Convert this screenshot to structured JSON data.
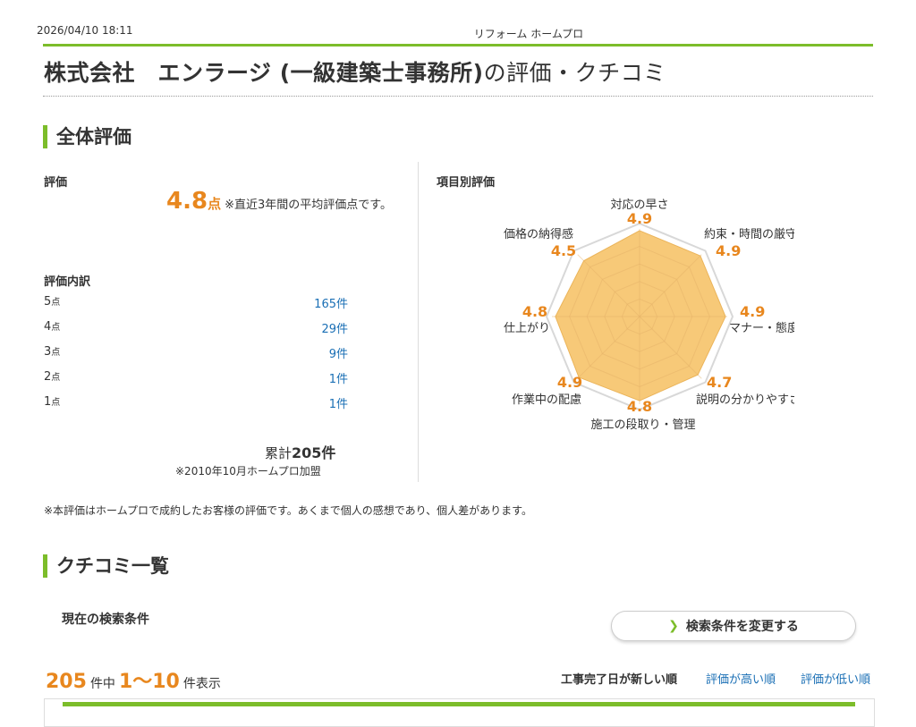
{
  "print": {
    "datetime": "2026/04/10 18:11",
    "site_name": "リフォーム ホームプロ"
  },
  "page_title": {
    "company": "株式会社　エンラージ (一級建築士事務所)",
    "suffix": "の評価・クチコミ"
  },
  "overall": {
    "heading": "全体評価",
    "rating_label": "評価",
    "score": "4.8",
    "score_unit": "点",
    "score_note": "※直近3年間の平均評価点です。",
    "breakdown_label": "評価内訳",
    "breakdown": [
      {
        "stars": "5",
        "unit": "点",
        "count": "165件"
      },
      {
        "stars": "4",
        "unit": "点",
        "count": "29件"
      },
      {
        "stars": "3",
        "unit": "点",
        "count": "9件"
      },
      {
        "stars": "2",
        "unit": "点",
        "count": "1件"
      },
      {
        "stars": "1",
        "unit": "点",
        "count": "1件"
      }
    ],
    "total_prefix": "累計",
    "total_value": "205件",
    "since": "※2010年10月ホームプロ加盟"
  },
  "item_rating": {
    "heading": "項目別評価",
    "max": 5,
    "fill_color": "#f7c978",
    "stroke_color": "#ebb45a",
    "items": [
      {
        "label": "対応の早さ",
        "score": "4.9"
      },
      {
        "label": "約束・時間の厳守",
        "score": "4.9"
      },
      {
        "label": "マナー・態度",
        "score": "4.9"
      },
      {
        "label": "説明の分かりやすさ",
        "score": "4.7"
      },
      {
        "label": "施工の段取り・管理",
        "score": "4.8"
      },
      {
        "label": "作業中の配慮",
        "score": "4.9"
      },
      {
        "label": "仕上がり",
        "score": "4.8"
      },
      {
        "label": "価格の納得感",
        "score": "4.5"
      }
    ]
  },
  "disclaimer": "※本評価はホームプロで成約したお客様の評価です。あくまで個人の感想であり、個人差があります。",
  "reviews": {
    "heading": "クチコミ一覧",
    "current_condition_label": "現在の検索条件",
    "change_button": "検索条件を変更する",
    "total": "205",
    "of_label": "件中",
    "range": "1〜10",
    "shown_label": "件表示",
    "sort_options": [
      "工事完了日が新しい順",
      "評価が高い順",
      "評価が低い順"
    ]
  },
  "colors": {
    "accent_green": "#7cbd2a",
    "score_orange": "#e8871e",
    "link_blue": "#1a6fb5"
  }
}
